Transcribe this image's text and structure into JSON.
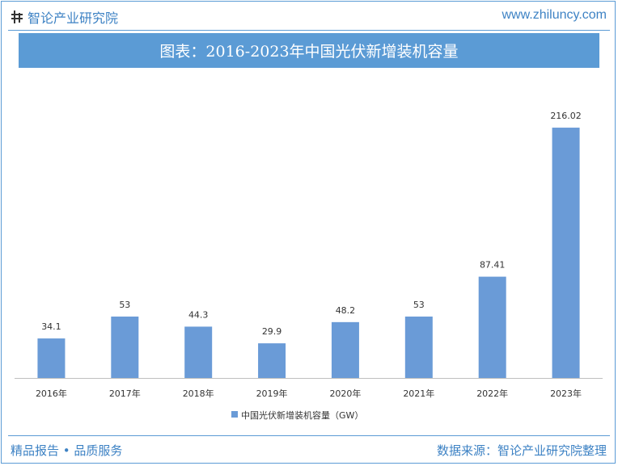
{
  "header": {
    "brand_name": "智论产业研究院",
    "site_url": "www.zhiluncy.com"
  },
  "title": "图表：2016-2023年中国光伏新增装机容量",
  "footer": {
    "left_text": "精品报告 • 品质服务",
    "right_text": "数据来源：智论产业研究院整理"
  },
  "colors": {
    "accent": "#5b9bd5",
    "bar": "#6a9bd7",
    "brand_text": "#3d82c4"
  },
  "chart_data": {
    "type": "bar",
    "categories": [
      "2016年",
      "2017年",
      "2018年",
      "2019年",
      "2020年",
      "2021年",
      "2022年",
      "2023年"
    ],
    "series": [
      {
        "name": "中国光伏新增装机容量（GW）",
        "values": [
          34.1,
          53,
          44.3,
          29.9,
          48.2,
          53,
          87.41,
          216.02
        ]
      }
    ],
    "data_labels": [
      "34.1",
      "53",
      "44.3",
      "29.9",
      "48.2",
      "53",
      "87.41",
      "216.02"
    ],
    "ylim": [
      0,
      230
    ],
    "grid": false,
    "y_axis_visible": false,
    "legend_position": "bottom"
  }
}
